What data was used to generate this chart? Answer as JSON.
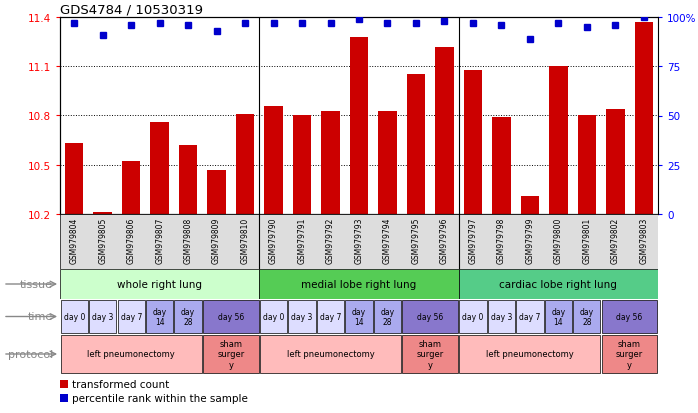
{
  "title": "GDS4784 / 10530319",
  "samples": [
    "GSM979804",
    "GSM979805",
    "GSM979806",
    "GSM979807",
    "GSM979808",
    "GSM979809",
    "GSM979810",
    "GSM979790",
    "GSM979791",
    "GSM979792",
    "GSM979793",
    "GSM979794",
    "GSM979795",
    "GSM979796",
    "GSM979797",
    "GSM979798",
    "GSM979799",
    "GSM979800",
    "GSM979801",
    "GSM979802",
    "GSM979803"
  ],
  "bar_values": [
    10.63,
    10.21,
    10.52,
    10.76,
    10.62,
    10.47,
    10.81,
    10.86,
    10.8,
    10.83,
    11.28,
    10.83,
    11.05,
    11.22,
    11.08,
    10.79,
    10.31,
    11.1,
    10.8,
    10.84,
    11.37
  ],
  "percentile_values": [
    97,
    91,
    96,
    97,
    96,
    93,
    97,
    97,
    97,
    97,
    99,
    97,
    97,
    98,
    97,
    96,
    89,
    97,
    95,
    96,
    100
  ],
  "ylim_left": [
    10.2,
    11.4
  ],
  "ylim_right": [
    0,
    100
  ],
  "yticks_left": [
    10.2,
    10.5,
    10.8,
    11.1,
    11.4
  ],
  "yticks_right": [
    0,
    25,
    50,
    75,
    100
  ],
  "ytick_labels_right": [
    "0",
    "25",
    "50",
    "75",
    "100%"
  ],
  "bar_color": "#cc0000",
  "dot_color": "#0000cc",
  "tissue_groups": [
    {
      "label": "whole right lung",
      "start": 0,
      "end": 7,
      "color": "#ccffcc"
    },
    {
      "label": "medial lobe right lung",
      "start": 7,
      "end": 14,
      "color": "#55cc55"
    },
    {
      "label": "cardiac lobe right lung",
      "start": 14,
      "end": 21,
      "color": "#55cc88"
    }
  ],
  "time_spans": [
    {
      "label": "day 0",
      "start": 0,
      "end": 1,
      "color": "#ddddff"
    },
    {
      "label": "day 3",
      "start": 1,
      "end": 2,
      "color": "#ddddff"
    },
    {
      "label": "day 7",
      "start": 2,
      "end": 3,
      "color": "#ddddff"
    },
    {
      "label": "day\n14",
      "start": 3,
      "end": 4,
      "color": "#aaaaee"
    },
    {
      "label": "day\n28",
      "start": 4,
      "end": 5,
      "color": "#aaaaee"
    },
    {
      "label": "day 56",
      "start": 5,
      "end": 7,
      "color": "#8877cc"
    },
    {
      "label": "day 0",
      "start": 7,
      "end": 8,
      "color": "#ddddff"
    },
    {
      "label": "day 3",
      "start": 8,
      "end": 9,
      "color": "#ddddff"
    },
    {
      "label": "day 7",
      "start": 9,
      "end": 10,
      "color": "#ddddff"
    },
    {
      "label": "day\n14",
      "start": 10,
      "end": 11,
      "color": "#aaaaee"
    },
    {
      "label": "day\n28",
      "start": 11,
      "end": 12,
      "color": "#aaaaee"
    },
    {
      "label": "day 56",
      "start": 12,
      "end": 14,
      "color": "#8877cc"
    },
    {
      "label": "day 0",
      "start": 14,
      "end": 15,
      "color": "#ddddff"
    },
    {
      "label": "day 3",
      "start": 15,
      "end": 16,
      "color": "#ddddff"
    },
    {
      "label": "day 7",
      "start": 16,
      "end": 17,
      "color": "#ddddff"
    },
    {
      "label": "day\n14",
      "start": 17,
      "end": 18,
      "color": "#aaaaee"
    },
    {
      "label": "day\n28",
      "start": 18,
      "end": 19,
      "color": "#aaaaee"
    },
    {
      "label": "day 56",
      "start": 19,
      "end": 21,
      "color": "#8877cc"
    }
  ],
  "protocol_spans": [
    {
      "label": "left pneumonectomy",
      "start": 0,
      "end": 5,
      "color": "#ffbbbb"
    },
    {
      "label": "sham\nsurger\ny",
      "start": 5,
      "end": 7,
      "color": "#ee8888"
    },
    {
      "label": "left pneumonectomy",
      "start": 7,
      "end": 12,
      "color": "#ffbbbb"
    },
    {
      "label": "sham\nsurger\ny",
      "start": 12,
      "end": 14,
      "color": "#ee8888"
    },
    {
      "label": "left pneumonectomy",
      "start": 14,
      "end": 19,
      "color": "#ffbbbb"
    },
    {
      "label": "sham\nsurger\ny",
      "start": 19,
      "end": 21,
      "color": "#ee8888"
    }
  ],
  "legend_items": [
    {
      "color": "#cc0000",
      "label": "transformed count"
    },
    {
      "color": "#0000cc",
      "label": "percentile rank within the sample"
    }
  ],
  "row_label_color": "#888888",
  "xticklabel_bg": "#dddddd"
}
